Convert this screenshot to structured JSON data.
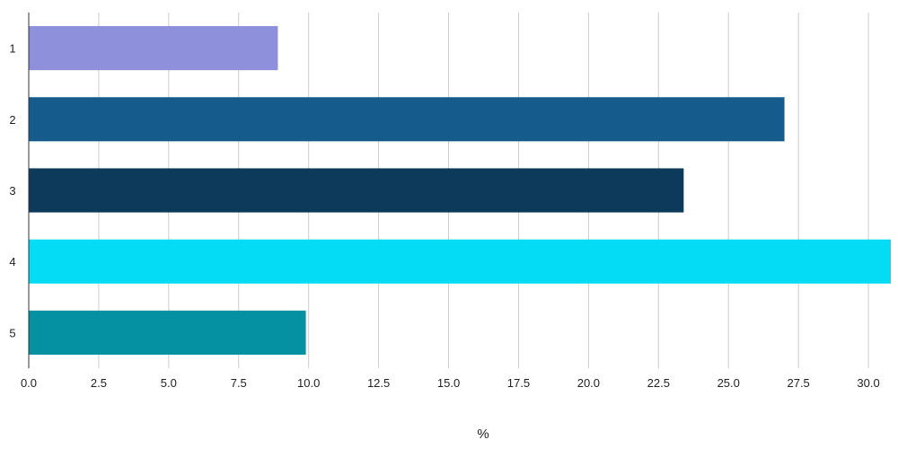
{
  "chart_data": {
    "type": "bar",
    "orientation": "horizontal",
    "categories": [
      "1",
      "2",
      "3",
      "4",
      "5"
    ],
    "values": [
      8.9,
      27.0,
      23.4,
      30.8,
      9.9
    ],
    "colors": [
      "#8f90db",
      "#155b8c",
      "#0d3a5a",
      "#04dbf4",
      "#0591a2"
    ],
    "xlabel": "%",
    "ylabel": "",
    "xlim": [
      0,
      30.8
    ],
    "xticks": [
      "0.0",
      "2.5",
      "5.0",
      "7.5",
      "10.0",
      "12.5",
      "15.0",
      "17.5",
      "20.0",
      "22.5",
      "25.0",
      "27.5",
      "30.0"
    ],
    "grid": "vertical"
  }
}
